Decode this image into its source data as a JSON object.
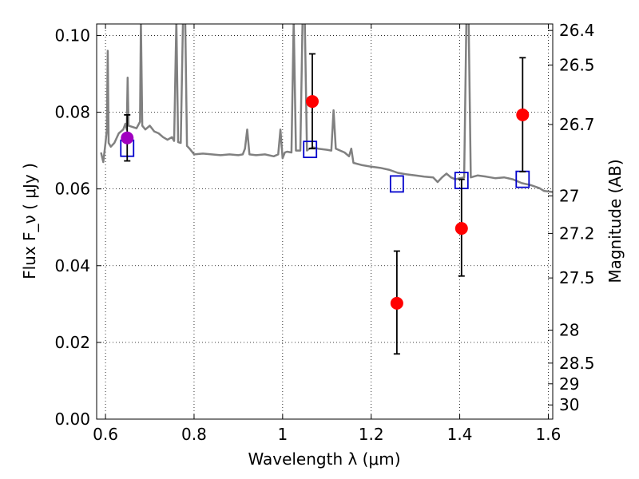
{
  "chart_data": {
    "type": "scatter",
    "title": "",
    "xlabel": "Wavelength  λ (μm)",
    "ylabel": "Flux  F_ν  ( μJy )",
    "ylabel_right": "Magnitude (AB)",
    "xlim": [
      0.58,
      1.61
    ],
    "ylim": [
      0.0,
      0.103
    ],
    "x_ticks": [
      0.6,
      0.8,
      1.0,
      1.2,
      1.4,
      1.6
    ],
    "x_tick_labels": [
      "0.6",
      "0.8",
      "1",
      "1.2",
      "1.4",
      "1.6"
    ],
    "y_ticks": [
      0.0,
      0.02,
      0.04,
      0.06,
      0.08,
      0.1
    ],
    "y_tick_labels": [
      "0.00",
      "0.02",
      "0.04",
      "0.06",
      "0.08",
      "0.10"
    ],
    "right_ticks": [
      {
        "label": "26.4",
        "flux": 0.1013
      },
      {
        "label": "26.5",
        "flux": 0.0923
      },
      {
        "label": "26.7",
        "flux": 0.0768
      },
      {
        "label": "27",
        "flux": 0.0582
      },
      {
        "label": "27.2",
        "flux": 0.0484
      },
      {
        "label": "27.5",
        "flux": 0.0368
      },
      {
        "label": "28",
        "flux": 0.0232
      },
      {
        "label": "28.5",
        "flux": 0.0146
      },
      {
        "label": "29",
        "flux": 0.0092
      },
      {
        "label": "30",
        "flux": 0.0037
      }
    ],
    "grid": true,
    "colors": {
      "spectrum": "#808080",
      "observed": "#ff0000",
      "highlight": "#a000c0",
      "model": "#0000cc",
      "errorbar": "#000000"
    },
    "series": [
      {
        "kind": "spectrum",
        "points": [
          [
            0.59,
            0.0695
          ],
          [
            0.595,
            0.067
          ],
          [
            0.6,
            0.072
          ],
          [
            0.603,
            0.0755
          ],
          [
            0.605,
            0.096
          ],
          [
            0.607,
            0.072
          ],
          [
            0.612,
            0.071
          ],
          [
            0.62,
            0.072
          ],
          [
            0.63,
            0.0745
          ],
          [
            0.64,
            0.0755
          ],
          [
            0.645,
            0.077
          ],
          [
            0.648,
            0.0755
          ],
          [
            0.65,
            0.089
          ],
          [
            0.652,
            0.0765
          ],
          [
            0.66,
            0.0762
          ],
          [
            0.67,
            0.0758
          ],
          [
            0.678,
            0.0775
          ],
          [
            0.68,
            0.104
          ],
          [
            0.683,
            0.0765
          ],
          [
            0.69,
            0.0755
          ],
          [
            0.7,
            0.0765
          ],
          [
            0.71,
            0.075
          ],
          [
            0.72,
            0.0745
          ],
          [
            0.73,
            0.0735
          ],
          [
            0.74,
            0.0728
          ],
          [
            0.75,
            0.0735
          ],
          [
            0.755,
            0.0725
          ],
          [
            0.76,
            0.104
          ],
          [
            0.764,
            0.0722
          ],
          [
            0.77,
            0.072
          ],
          [
            0.775,
            0.104
          ],
          [
            0.78,
            0.104
          ],
          [
            0.784,
            0.0712
          ],
          [
            0.79,
            0.0705
          ],
          [
            0.8,
            0.069
          ],
          [
            0.82,
            0.0692
          ],
          [
            0.84,
            0.069
          ],
          [
            0.86,
            0.0688
          ],
          [
            0.88,
            0.069
          ],
          [
            0.9,
            0.0688
          ],
          [
            0.91,
            0.069
          ],
          [
            0.915,
            0.0705
          ],
          [
            0.92,
            0.0755
          ],
          [
            0.925,
            0.069
          ],
          [
            0.94,
            0.0688
          ],
          [
            0.96,
            0.069
          ],
          [
            0.98,
            0.0685
          ],
          [
            0.99,
            0.069
          ],
          [
            0.995,
            0.0755
          ],
          [
            1.0,
            0.068
          ],
          [
            1.005,
            0.0695
          ],
          [
            1.01,
            0.0697
          ],
          [
            1.02,
            0.0695
          ],
          [
            1.025,
            0.104
          ],
          [
            1.03,
            0.07
          ],
          [
            1.04,
            0.07
          ],
          [
            1.045,
            0.104
          ],
          [
            1.05,
            0.104
          ],
          [
            1.055,
            0.07
          ],
          [
            1.06,
            0.0705
          ],
          [
            1.07,
            0.0708
          ],
          [
            1.08,
            0.0705
          ],
          [
            1.1,
            0.0702
          ],
          [
            1.11,
            0.07
          ],
          [
            1.115,
            0.0805
          ],
          [
            1.12,
            0.0705
          ],
          [
            1.13,
            0.07
          ],
          [
            1.14,
            0.0695
          ],
          [
            1.15,
            0.0685
          ],
          [
            1.155,
            0.0705
          ],
          [
            1.16,
            0.0668
          ],
          [
            1.18,
            0.0662
          ],
          [
            1.2,
            0.0658
          ],
          [
            1.22,
            0.0655
          ],
          [
            1.24,
            0.065
          ],
          [
            1.26,
            0.0642
          ],
          [
            1.28,
            0.0638
          ],
          [
            1.3,
            0.0635
          ],
          [
            1.32,
            0.0632
          ],
          [
            1.34,
            0.063
          ],
          [
            1.35,
            0.0618
          ],
          [
            1.36,
            0.063
          ],
          [
            1.37,
            0.064
          ],
          [
            1.38,
            0.063
          ],
          [
            1.39,
            0.0625
          ],
          [
            1.4,
            0.0628
          ],
          [
            1.41,
            0.063
          ],
          [
            1.415,
            0.104
          ],
          [
            1.42,
            0.104
          ],
          [
            1.425,
            0.063
          ],
          [
            1.44,
            0.0635
          ],
          [
            1.46,
            0.0632
          ],
          [
            1.48,
            0.0628
          ],
          [
            1.5,
            0.063
          ],
          [
            1.52,
            0.0625
          ],
          [
            1.54,
            0.0615
          ],
          [
            1.56,
            0.061
          ],
          [
            1.58,
            0.0602
          ],
          [
            1.59,
            0.0595
          ],
          [
            1.61,
            0.0592
          ]
        ]
      },
      {
        "kind": "observed",
        "points": [
          {
            "x": 0.649,
            "y": 0.0733,
            "yerr_low": 0.0673,
            "yerr_high": 0.0793,
            "highlight": true
          },
          {
            "x": 1.067,
            "y": 0.0828,
            "yerr_low": 0.0705,
            "yerr_high": 0.0952,
            "highlight": false
          },
          {
            "x": 1.258,
            "y": 0.0302,
            "yerr_low": 0.017,
            "yerr_high": 0.0438,
            "highlight": false
          },
          {
            "x": 1.404,
            "y": 0.0497,
            "yerr_low": 0.0373,
            "yerr_high": 0.0625,
            "highlight": false
          },
          {
            "x": 1.542,
            "y": 0.0793,
            "yerr_low": 0.0645,
            "yerr_high": 0.0942,
            "highlight": false
          }
        ]
      },
      {
        "kind": "model",
        "points": [
          {
            "x": 0.649,
            "y": 0.0706
          },
          {
            "x": 1.062,
            "y": 0.0703
          },
          {
            "x": 1.258,
            "y": 0.0613
          },
          {
            "x": 1.404,
            "y": 0.0622
          },
          {
            "x": 1.542,
            "y": 0.0625
          }
        ]
      }
    ]
  }
}
